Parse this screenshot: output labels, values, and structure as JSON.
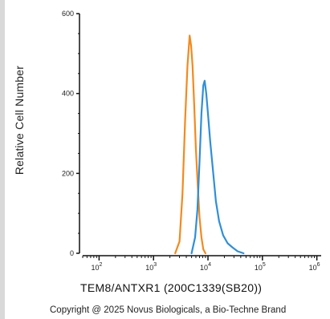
{
  "chart_data": {
    "type": "line",
    "xlabel": "TEM8/ANTXR1 (200C1339(SB20))",
    "ylabel": "Relative Cell Number",
    "x_scale": "log",
    "x_ticks": [
      {
        "value": 100,
        "base": "10",
        "exp": "2"
      },
      {
        "value": 1000,
        "base": "10",
        "exp": "3"
      },
      {
        "value": 10000,
        "base": "10",
        "exp": "4"
      },
      {
        "value": 100000,
        "base": "10",
        "exp": "5"
      },
      {
        "value": 1000000,
        "base": "10",
        "exp": "6"
      }
    ],
    "xlim": [
      50,
      1200000
    ],
    "y_ticks": [
      "0",
      "200",
      "400",
      "600"
    ],
    "ylim": [
      0,
      600
    ],
    "grid": false,
    "series": [
      {
        "color": "#f28a1e",
        "x": [
          2500,
          3000,
          3400,
          3800,
          4200,
          4600,
          4900,
          5200,
          5600,
          6000,
          6500,
          7000,
          7600,
          8200,
          9000
        ],
        "y": [
          0,
          30,
          150,
          330,
          470,
          545,
          520,
          470,
          370,
          260,
          170,
          90,
          40,
          10,
          0
        ]
      },
      {
        "color": "#2f8fd8",
        "x": [
          5000,
          5800,
          6400,
          7000,
          7600,
          8200,
          8700,
          9300,
          10000,
          11000,
          12500,
          14000,
          16000,
          19000,
          23000,
          28000,
          35000,
          45000
        ],
        "y": [
          0,
          40,
          110,
          230,
          350,
          420,
          432,
          400,
          350,
          280,
          200,
          130,
          80,
          45,
          25,
          15,
          5,
          0
        ]
      }
    ]
  },
  "copyright": "Copyright @ 2025 Novus Biologicals, a Bio-Techne Brand"
}
